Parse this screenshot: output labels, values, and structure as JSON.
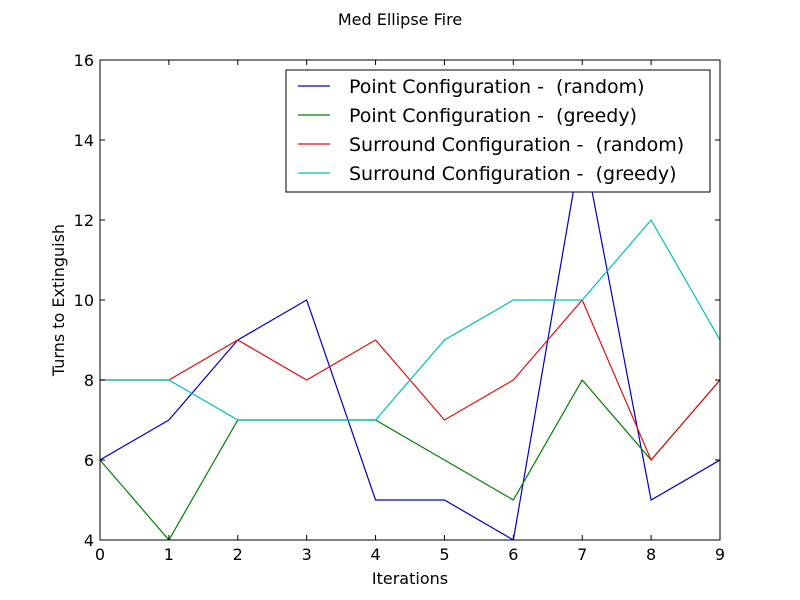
{
  "chart_data": {
    "type": "line",
    "title": "Med Ellipse Fire",
    "xlabel": "Iterations",
    "ylabel": "Turns to Extinguish",
    "x": [
      0,
      1,
      2,
      3,
      4,
      5,
      6,
      7,
      8,
      9
    ],
    "xlim": [
      0,
      9
    ],
    "ylim": [
      4,
      16
    ],
    "xticks": [
      "0",
      "1",
      "2",
      "3",
      "4",
      "5",
      "6",
      "7",
      "8",
      "9"
    ],
    "yticks": [
      "4",
      "6",
      "8",
      "10",
      "12",
      "14",
      "16"
    ],
    "grid": false,
    "legend_position": "top-right",
    "series": [
      {
        "name": "Point Configuration -  (random)",
        "color": "#0000bf",
        "values": [
          6,
          7,
          9,
          10,
          5,
          5,
          4,
          14,
          5,
          6
        ]
      },
      {
        "name": "Point Configuration -  (greedy)",
        "color": "#007f00",
        "values": [
          6,
          4,
          7,
          7,
          7,
          6,
          5,
          8,
          6,
          8
        ]
      },
      {
        "name": "Surround Configuration -  (random)",
        "color": "#dd1111",
        "values": [
          8,
          8,
          9,
          8,
          9,
          7,
          8,
          10,
          6,
          8
        ]
      },
      {
        "name": "Surround Configuration -  (greedy)",
        "color": "#00bfbf",
        "values": [
          8,
          8,
          7,
          7,
          7,
          9,
          10,
          10,
          12,
          9
        ]
      }
    ]
  }
}
